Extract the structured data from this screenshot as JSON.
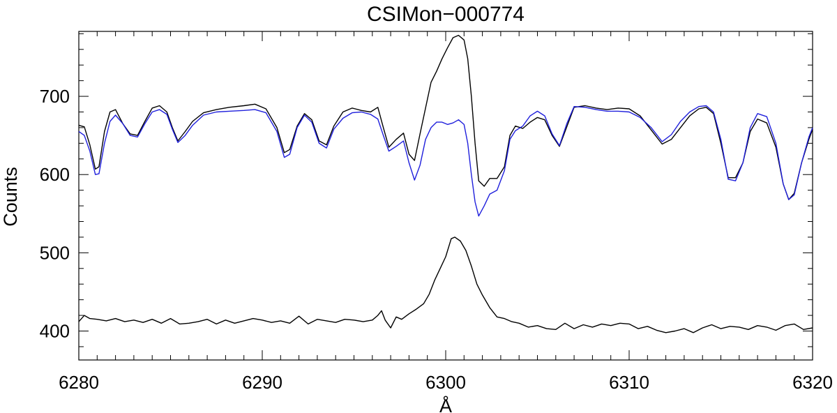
{
  "chart_data": {
    "type": "line",
    "title": "CSIMon−000774",
    "xlabel": "Å",
    "ylabel": "Counts",
    "xlim": [
      6280,
      6320
    ],
    "ylim": [
      363,
      783
    ],
    "x_ticks": [
      6280,
      6290,
      6300,
      6310,
      6320
    ],
    "x_tick_labels": [
      "6280",
      "6290",
      "6300",
      "6310",
      "6320"
    ],
    "y_ticks": [
      400,
      500,
      600,
      700
    ],
    "y_tick_labels": [
      "400",
      "500",
      "600",
      "700"
    ],
    "grid": false,
    "legend": "none",
    "series": [
      {
        "color": "#000000",
        "points": [
          [
            6280,
            663
          ],
          [
            6280.3,
            661
          ],
          [
            6280.6,
            638
          ],
          [
            6280.9,
            607
          ],
          [
            6281.1,
            610
          ],
          [
            6281.4,
            655
          ],
          [
            6281.7,
            680
          ],
          [
            6282,
            683
          ],
          [
            6282.4,
            665
          ],
          [
            6282.8,
            652
          ],
          [
            6283.2,
            650
          ],
          [
            6283.6,
            668
          ],
          [
            6284,
            685
          ],
          [
            6284.4,
            688
          ],
          [
            6284.8,
            680
          ],
          [
            6285.1,
            660
          ],
          [
            6285.4,
            643
          ],
          [
            6285.8,
            655
          ],
          [
            6286.2,
            668
          ],
          [
            6286.8,
            679
          ],
          [
            6287.5,
            683
          ],
          [
            6288.2,
            686
          ],
          [
            6289,
            688
          ],
          [
            6289.6,
            690
          ],
          [
            6290.2,
            684
          ],
          [
            6290.8,
            660
          ],
          [
            6291.2,
            628
          ],
          [
            6291.5,
            632
          ],
          [
            6291.9,
            662
          ],
          [
            6292.3,
            678
          ],
          [
            6292.7,
            670
          ],
          [
            6293.1,
            643
          ],
          [
            6293.5,
            638
          ],
          [
            6293.9,
            662
          ],
          [
            6294.4,
            680
          ],
          [
            6294.9,
            685
          ],
          [
            6295.4,
            682
          ],
          [
            6295.9,
            680
          ],
          [
            6296.3,
            686
          ],
          [
            6296.6,
            660
          ],
          [
            6296.9,
            635
          ],
          [
            6297.3,
            645
          ],
          [
            6297.7,
            653
          ],
          [
            6298,
            626
          ],
          [
            6298.3,
            618
          ],
          [
            6298.6,
            652
          ],
          [
            6298.9,
            685
          ],
          [
            6299.2,
            718
          ],
          [
            6299.5,
            732
          ],
          [
            6299.8,
            748
          ],
          [
            6300.1,
            762
          ],
          [
            6300.4,
            775
          ],
          [
            6300.7,
            778
          ],
          [
            6301,
            772
          ],
          [
            6301.2,
            748
          ],
          [
            6301.4,
            700
          ],
          [
            6301.6,
            640
          ],
          [
            6301.8,
            592
          ],
          [
            6302.1,
            585
          ],
          [
            6302.4,
            595
          ],
          [
            6302.8,
            595
          ],
          [
            6303.2,
            610
          ],
          [
            6303.5,
            650
          ],
          [
            6303.8,
            662
          ],
          [
            6304.2,
            659
          ],
          [
            6304.6,
            667
          ],
          [
            6305,
            673
          ],
          [
            6305.4,
            670
          ],
          [
            6305.8,
            650
          ],
          [
            6306.2,
            636
          ],
          [
            6306.6,
            661
          ],
          [
            6307,
            686
          ],
          [
            6307.6,
            688
          ],
          [
            6308.2,
            685
          ],
          [
            6308.8,
            683
          ],
          [
            6309.4,
            685
          ],
          [
            6310,
            684
          ],
          [
            6310.6,
            675
          ],
          [
            6311.2,
            657
          ],
          [
            6311.8,
            639
          ],
          [
            6312.3,
            645
          ],
          [
            6312.8,
            660
          ],
          [
            6313.3,
            675
          ],
          [
            6313.8,
            684
          ],
          [
            6314.2,
            686
          ],
          [
            6314.6,
            678
          ],
          [
            6315,
            640
          ],
          [
            6315.4,
            596
          ],
          [
            6315.8,
            596
          ],
          [
            6316.2,
            615
          ],
          [
            6316.6,
            655
          ],
          [
            6317,
            671
          ],
          [
            6317.5,
            666
          ],
          [
            6318,
            635
          ],
          [
            6318.4,
            588
          ],
          [
            6318.7,
            568
          ],
          [
            6319,
            576
          ],
          [
            6319.4,
            615
          ],
          [
            6319.8,
            645
          ],
          [
            6320,
            658
          ]
        ]
      },
      {
        "color": "#1f1fdc",
        "points": [
          [
            6280,
            655
          ],
          [
            6280.3,
            650
          ],
          [
            6280.6,
            630
          ],
          [
            6280.9,
            600
          ],
          [
            6281.1,
            601
          ],
          [
            6281.4,
            640
          ],
          [
            6281.7,
            668
          ],
          [
            6282,
            676
          ],
          [
            6282.4,
            665
          ],
          [
            6282.8,
            650
          ],
          [
            6283.2,
            648
          ],
          [
            6283.6,
            665
          ],
          [
            6284,
            680
          ],
          [
            6284.4,
            683
          ],
          [
            6284.8,
            677
          ],
          [
            6285.1,
            658
          ],
          [
            6285.4,
            641
          ],
          [
            6285.8,
            650
          ],
          [
            6286.2,
            663
          ],
          [
            6286.8,
            676
          ],
          [
            6287.5,
            680
          ],
          [
            6288.2,
            681
          ],
          [
            6289,
            682
          ],
          [
            6289.6,
            683
          ],
          [
            6290.2,
            679
          ],
          [
            6290.8,
            655
          ],
          [
            6291.2,
            622
          ],
          [
            6291.5,
            626
          ],
          [
            6291.9,
            660
          ],
          [
            6292.3,
            676
          ],
          [
            6292.7,
            667
          ],
          [
            6293.1,
            640
          ],
          [
            6293.5,
            634
          ],
          [
            6293.9,
            658
          ],
          [
            6294.4,
            672
          ],
          [
            6294.9,
            679
          ],
          [
            6295.4,
            680
          ],
          [
            6295.9,
            677
          ],
          [
            6296.3,
            671
          ],
          [
            6296.6,
            650
          ],
          [
            6296.9,
            630
          ],
          [
            6297.3,
            636
          ],
          [
            6297.7,
            643
          ],
          [
            6298,
            615
          ],
          [
            6298.3,
            593
          ],
          [
            6298.6,
            612
          ],
          [
            6298.9,
            645
          ],
          [
            6299.2,
            660
          ],
          [
            6299.5,
            667
          ],
          [
            6299.8,
            667
          ],
          [
            6300.1,
            664
          ],
          [
            6300.4,
            666
          ],
          [
            6300.7,
            670
          ],
          [
            6301,
            664
          ],
          [
            6301.2,
            640
          ],
          [
            6301.4,
            600
          ],
          [
            6301.6,
            565
          ],
          [
            6301.8,
            547
          ],
          [
            6302.1,
            560
          ],
          [
            6302.4,
            575
          ],
          [
            6302.8,
            580
          ],
          [
            6303.2,
            605
          ],
          [
            6303.5,
            645
          ],
          [
            6303.8,
            656
          ],
          [
            6304.2,
            662
          ],
          [
            6304.6,
            675
          ],
          [
            6305,
            681
          ],
          [
            6305.4,
            675
          ],
          [
            6305.8,
            652
          ],
          [
            6306.2,
            637
          ],
          [
            6306.6,
            665
          ],
          [
            6307,
            687
          ],
          [
            6307.6,
            686
          ],
          [
            6308.2,
            683
          ],
          [
            6308.8,
            681
          ],
          [
            6309.4,
            681
          ],
          [
            6310,
            680
          ],
          [
            6310.6,
            673
          ],
          [
            6311.2,
            660
          ],
          [
            6311.8,
            642
          ],
          [
            6312.3,
            651
          ],
          [
            6312.8,
            668
          ],
          [
            6313.3,
            680
          ],
          [
            6313.8,
            687
          ],
          [
            6314.2,
            688
          ],
          [
            6314.6,
            680
          ],
          [
            6315,
            645
          ],
          [
            6315.4,
            594
          ],
          [
            6315.8,
            592
          ],
          [
            6316.2,
            615
          ],
          [
            6316.6,
            660
          ],
          [
            6317,
            678
          ],
          [
            6317.5,
            674
          ],
          [
            6318,
            640
          ],
          [
            6318.4,
            588
          ],
          [
            6318.7,
            568
          ],
          [
            6319,
            574
          ],
          [
            6319.4,
            615
          ],
          [
            6319.8,
            648
          ],
          [
            6320,
            660
          ]
        ]
      },
      {
        "color": "#000000",
        "points": [
          [
            6280,
            412
          ],
          [
            6280.3,
            420
          ],
          [
            6280.6,
            416
          ],
          [
            6281,
            415
          ],
          [
            6281.5,
            413
          ],
          [
            6282,
            416
          ],
          [
            6282.5,
            412
          ],
          [
            6283,
            414
          ],
          [
            6283.5,
            411
          ],
          [
            6284,
            415
          ],
          [
            6284.5,
            410
          ],
          [
            6285,
            416
          ],
          [
            6285.5,
            409
          ],
          [
            6286,
            410
          ],
          [
            6286.5,
            412
          ],
          [
            6287,
            415
          ],
          [
            6287.5,
            409
          ],
          [
            6288,
            414
          ],
          [
            6288.5,
            410
          ],
          [
            6289,
            413
          ],
          [
            6289.5,
            416
          ],
          [
            6290,
            414
          ],
          [
            6290.5,
            411
          ],
          [
            6291,
            413
          ],
          [
            6291.5,
            410
          ],
          [
            6292,
            419
          ],
          [
            6292.5,
            409
          ],
          [
            6293,
            415
          ],
          [
            6293.5,
            413
          ],
          [
            6294,
            411
          ],
          [
            6294.5,
            415
          ],
          [
            6295,
            414
          ],
          [
            6295.5,
            412
          ],
          [
            6296,
            414
          ],
          [
            6296.3,
            420
          ],
          [
            6296.5,
            426
          ],
          [
            6296.7,
            414
          ],
          [
            6297,
            404
          ],
          [
            6297.3,
            418
          ],
          [
            6297.6,
            415
          ],
          [
            6298,
            422
          ],
          [
            6298.4,
            428
          ],
          [
            6298.8,
            435
          ],
          [
            6299.1,
            447
          ],
          [
            6299.4,
            465
          ],
          [
            6299.7,
            480
          ],
          [
            6300,
            495
          ],
          [
            6300.3,
            518
          ],
          [
            6300.5,
            520
          ],
          [
            6300.8,
            515
          ],
          [
            6301.1,
            503
          ],
          [
            6301.4,
            483
          ],
          [
            6301.7,
            460
          ],
          [
            6302,
            446
          ],
          [
            6302.4,
            430
          ],
          [
            6302.8,
            418
          ],
          [
            6303.2,
            416
          ],
          [
            6303.6,
            412
          ],
          [
            6304,
            410
          ],
          [
            6304.5,
            405
          ],
          [
            6305,
            407
          ],
          [
            6305.5,
            403
          ],
          [
            6306,
            402
          ],
          [
            6306.5,
            410
          ],
          [
            6307,
            403
          ],
          [
            6307.5,
            408
          ],
          [
            6308,
            405
          ],
          [
            6308.5,
            409
          ],
          [
            6309,
            407
          ],
          [
            6309.5,
            410
          ],
          [
            6310,
            409
          ],
          [
            6310.5,
            403
          ],
          [
            6311,
            406
          ],
          [
            6311.5,
            401
          ],
          [
            6312,
            398
          ],
          [
            6312.5,
            400
          ],
          [
            6313,
            403
          ],
          [
            6313.5,
            398
          ],
          [
            6314,
            404
          ],
          [
            6314.5,
            408
          ],
          [
            6315,
            403
          ],
          [
            6315.5,
            406
          ],
          [
            6316,
            405
          ],
          [
            6316.5,
            402
          ],
          [
            6317,
            407
          ],
          [
            6317.5,
            405
          ],
          [
            6318,
            401
          ],
          [
            6318.5,
            407
          ],
          [
            6319,
            409
          ],
          [
            6319.5,
            402
          ],
          [
            6320,
            404
          ]
        ]
      }
    ]
  }
}
